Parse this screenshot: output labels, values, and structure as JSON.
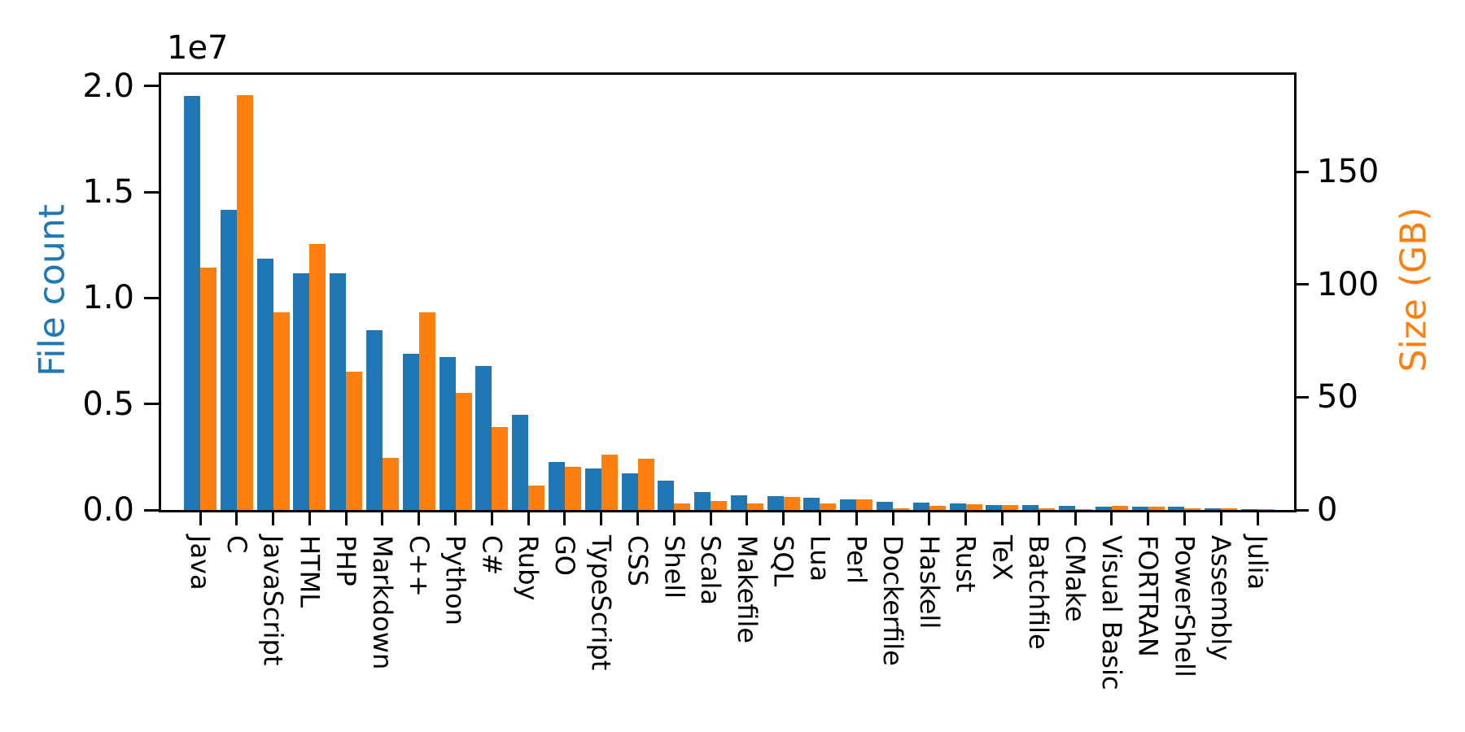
{
  "chart_data": {
    "type": "bar",
    "title": "",
    "categories": [
      "Java",
      "C",
      "JavaScript",
      "HTML",
      "PHP",
      "Markdown",
      "C++",
      "Python",
      "C#",
      "Ruby",
      "GO",
      "TypeScript",
      "CSS",
      "Shell",
      "Scala",
      "Makefile",
      "SQL",
      "Lua",
      "Perl",
      "Dockerfile",
      "Haskell",
      "Rust",
      "TeX",
      "Batchfile",
      "CMake",
      "Visual Basic",
      "FORTRAN",
      "PowerShell",
      "Assembly",
      "Julia"
    ],
    "series": [
      {
        "name": "File count",
        "axis": "left",
        "color": "#1f77b4",
        "values": [
          19548190,
          14143113,
          11839883,
          11178557,
          11177610,
          8464626,
          7380520,
          7226626,
          6811652,
          4473331,
          2265436,
          1940406,
          1734406,
          1385648,
          835755,
          679430,
          656671,
          578554,
          497949,
          366505,
          340623,
          322431,
          251015,
          236945,
          175282,
          155652,
          142038,
          136846,
          82905,
          58317
        ]
      },
      {
        "name": "Size (GB)",
        "axis": "right",
        "color": "#ff7f0e",
        "values": [
          107.7,
          183.83,
          87.82,
          118.12,
          61.41,
          23.09,
          87.73,
          52.03,
          36.83,
          10.95,
          19.28,
          24.59,
          22.67,
          3.01,
          4.1,
          2.92,
          5.67,
          2.81,
          4.7,
          0.71,
          1.85,
          2.68,
          2.15,
          0.7,
          0.54,
          1.91,
          1.62,
          0.69,
          0.78,
          0.29
        ]
      }
    ],
    "left_axis": {
      "label": "File count",
      "color": "#1f77b4",
      "offset_text": "1e7",
      "tick_labels": [
        "0.0",
        "0.5",
        "1.0",
        "1.5",
        "2.0"
      ],
      "tick_values": [
        0,
        5000000,
        10000000,
        15000000,
        20000000
      ],
      "range": [
        0,
        20525600
      ]
    },
    "right_axis": {
      "label": "Size (GB)",
      "color": "#ff7f0e",
      "tick_labels": [
        "0",
        "50",
        "100",
        "150"
      ],
      "tick_values": [
        0,
        50,
        100,
        150
      ],
      "range": [
        0,
        193
      ]
    },
    "x_axis": {
      "tick_label_rotation": 90
    },
    "grid": false,
    "legend": false,
    "spine_color": "#000000",
    "background": "#ffffff"
  }
}
